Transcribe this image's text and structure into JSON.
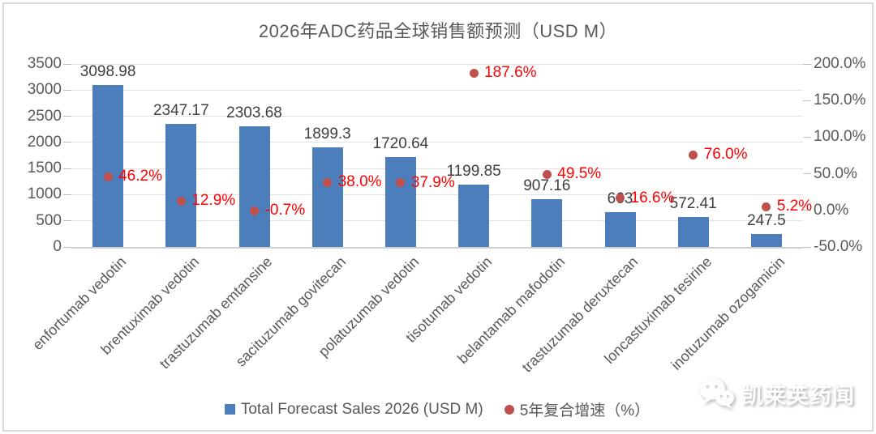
{
  "title": "2026年ADC药品全球销售额预测（USD M）",
  "legend": [
    {
      "label": "Total Forecast Sales 2026 (USD M)",
      "marker": "square",
      "color": "#4d7ebc"
    },
    {
      "label": "5年复合增速（%）",
      "marker": "circle",
      "color": "#c0504d"
    }
  ],
  "watermark": {
    "text": "凯莱英药闻",
    "icon": "wechat-icon"
  },
  "colors": {
    "bar": "#4d7ebc",
    "point": "#c0504d",
    "pct_label": "#ff0000",
    "value_label": "#3f3f3f",
    "axis_text": "#595959",
    "title_text": "#595959",
    "gridline": "#e2e2e2",
    "card_border": "#dadada"
  },
  "chart_data": {
    "type": "bar",
    "subtype": "combo-bar-and-point",
    "title": "2026年ADC药品全球销售额预测（USD M）",
    "grid": "horizontal",
    "legend_position": "bottom",
    "categories": [
      "enfortumab vedotin",
      "brentuximab vedotin",
      "trastuzumab emtansine",
      "sacituzumab govitecan",
      "polatuzumab vedotin",
      "tisotumab vedotin",
      "belantamab mafodotin",
      "trastuzumab deruxtecan",
      "loncastuximab tesirine",
      "inotuzumab ozogamicin"
    ],
    "series": [
      {
        "name": "Total Forecast Sales 2026 (USD M)",
        "type": "bar",
        "axis": "left",
        "color": "#4d7ebc",
        "values": [
          3098.98,
          2347.17,
          2303.68,
          1899.3,
          1720.64,
          1199.85,
          907.16,
          663,
          572.41,
          247.5
        ],
        "labels": [
          "3098.98",
          "2347.17",
          "2303.68",
          "1899.3",
          "1720.64",
          "1199.85",
          "907.16",
          "663",
          "572.41",
          "247.5"
        ]
      },
      {
        "name": "5年复合增速（%）",
        "type": "point",
        "axis": "right",
        "color": "#c0504d",
        "label_color": "#ff0000",
        "values": [
          46.2,
          12.9,
          -0.7,
          38.0,
          37.9,
          187.6,
          49.5,
          16.6,
          76.0,
          5.2
        ],
        "labels": [
          "46.2%",
          "12.9%",
          "-0.7%",
          "38.0%",
          "37.9%",
          "187.6%",
          "49.5%",
          "16.6%",
          "76.0%",
          "5.2%"
        ]
      }
    ],
    "y_axis": {
      "min": 0,
      "max": 3500,
      "step": 500,
      "tick_values": [
        0,
        500,
        1000,
        1500,
        2000,
        2500,
        3000,
        3500
      ],
      "tick_labels": [
        "0",
        "500",
        "1000",
        "1500",
        "2000",
        "2500",
        "3000",
        "3500"
      ]
    },
    "y2_axis": {
      "min": -50,
      "max": 200,
      "step": 50,
      "tick_values": [
        -50,
        0,
        50,
        100,
        150,
        200
      ],
      "tick_labels": [
        "-50.0%",
        "0.0%",
        "50.0%",
        "100.0%",
        "150.0%",
        "200.0%"
      ]
    }
  }
}
